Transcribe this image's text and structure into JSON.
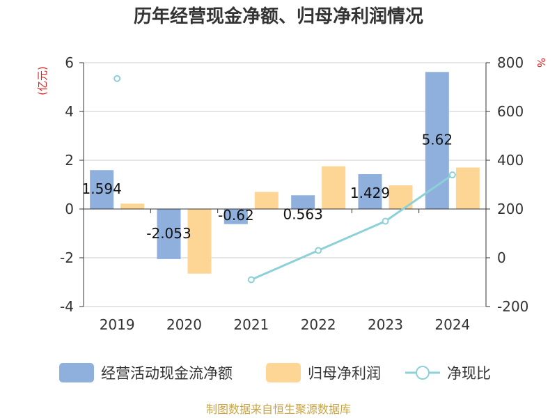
{
  "chart_data": {
    "type": "bar",
    "title": "历年经营现金净额、归母净利润情况",
    "categories": [
      "2019",
      "2020",
      "2021",
      "2022",
      "2023",
      "2024"
    ],
    "left_axis": {
      "unit": "(亿元)",
      "range": [
        -4,
        6
      ],
      "ticks": [
        "6",
        "4",
        "2",
        "0",
        "-2",
        "-4"
      ]
    },
    "right_axis": {
      "unit": "%",
      "range": [
        -200,
        800
      ],
      "ticks": [
        "800",
        "600",
        "400",
        "200",
        "0",
        "-200"
      ]
    },
    "series": [
      {
        "name": "经营活动现金流净额",
        "type": "bar",
        "axis": "left",
        "color": "#8fafdc",
        "values": [
          1.594,
          -2.053,
          -0.62,
          0.563,
          1.429,
          5.62
        ],
        "labels": [
          "1.594",
          "-2.053",
          "-0.62",
          "0.563",
          "1.429",
          "5.62"
        ]
      },
      {
        "name": "归母净利润",
        "type": "bar",
        "axis": "left",
        "color": "#fdd594",
        "values": [
          0.22,
          -2.65,
          0.7,
          1.75,
          0.97,
          1.7
        ]
      },
      {
        "name": "净现比",
        "type": "line",
        "axis": "right",
        "color": "#8dd1d8",
        "values": [
          735,
          null,
          -90,
          30,
          150,
          340
        ]
      }
    ],
    "legend_position": "bottom",
    "grid": true
  },
  "source_note": "制图数据来自恒生聚源数据库",
  "colors": {
    "axis_unit": "#dd2222",
    "source": "#c8a444",
    "grid": "#cccccc",
    "axis": "#333333"
  }
}
